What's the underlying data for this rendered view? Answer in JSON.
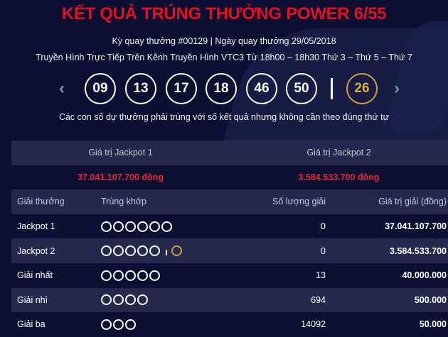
{
  "header": {
    "title": "KẾT QUẢ TRÚNG THƯỞNG POWER 6/55",
    "draw_info": "Kỳ quay thưởng #00129 | Ngày quay thưởng 29/05/2018",
    "broadcast": "Truyền Hình Trực Tiếp Trên Kênh Truyền Hình VTC3 Từ 18h00 – 18h30 Thứ 3 – Thứ 5 – Thứ 7",
    "note": "Các con số dự thưởng phải trùng với số kết quả nhưng không cần theo đúng thứ tự"
  },
  "numbers": [
    "09",
    "13",
    "17",
    "18",
    "46",
    "50"
  ],
  "bonus_number": "26",
  "nav": {
    "prev_icon": "chevron-left-icon",
    "next_icon": "chevron-right-icon"
  },
  "jackpot": {
    "label1": "Giá trị Jackpot 1",
    "label2": "Giá trị Jackpot 2",
    "value1": "37.041.107.700 đồng",
    "value2": "3.584.533.700 đồng"
  },
  "table": {
    "headers": [
      "Giải thưởng",
      "Trùng khớp",
      "Số lượng giải",
      "Giá trị giải (đồng)"
    ],
    "rows": [
      {
        "prize": "Jackpot 1",
        "matches": 6,
        "bonus": false,
        "count": "0",
        "value": "37.041.107.700"
      },
      {
        "prize": "Jackpot 2",
        "matches": 5,
        "bonus": true,
        "count": "0",
        "value": "3.584.533.700"
      },
      {
        "prize": "Giải nhất",
        "matches": 5,
        "bonus": false,
        "count": "13",
        "value": "40.000.000"
      },
      {
        "prize": "Giải nhì",
        "matches": 4,
        "bonus": false,
        "count": "694",
        "value": "500.000"
      },
      {
        "prize": "Giải ba",
        "matches": 3,
        "bonus": false,
        "count": "14092",
        "value": "50.000"
      }
    ]
  },
  "colors": {
    "background": "#0d0f32",
    "title": "#e3101e",
    "bonus": "#c9a33a",
    "row_alt": "#26284d"
  }
}
